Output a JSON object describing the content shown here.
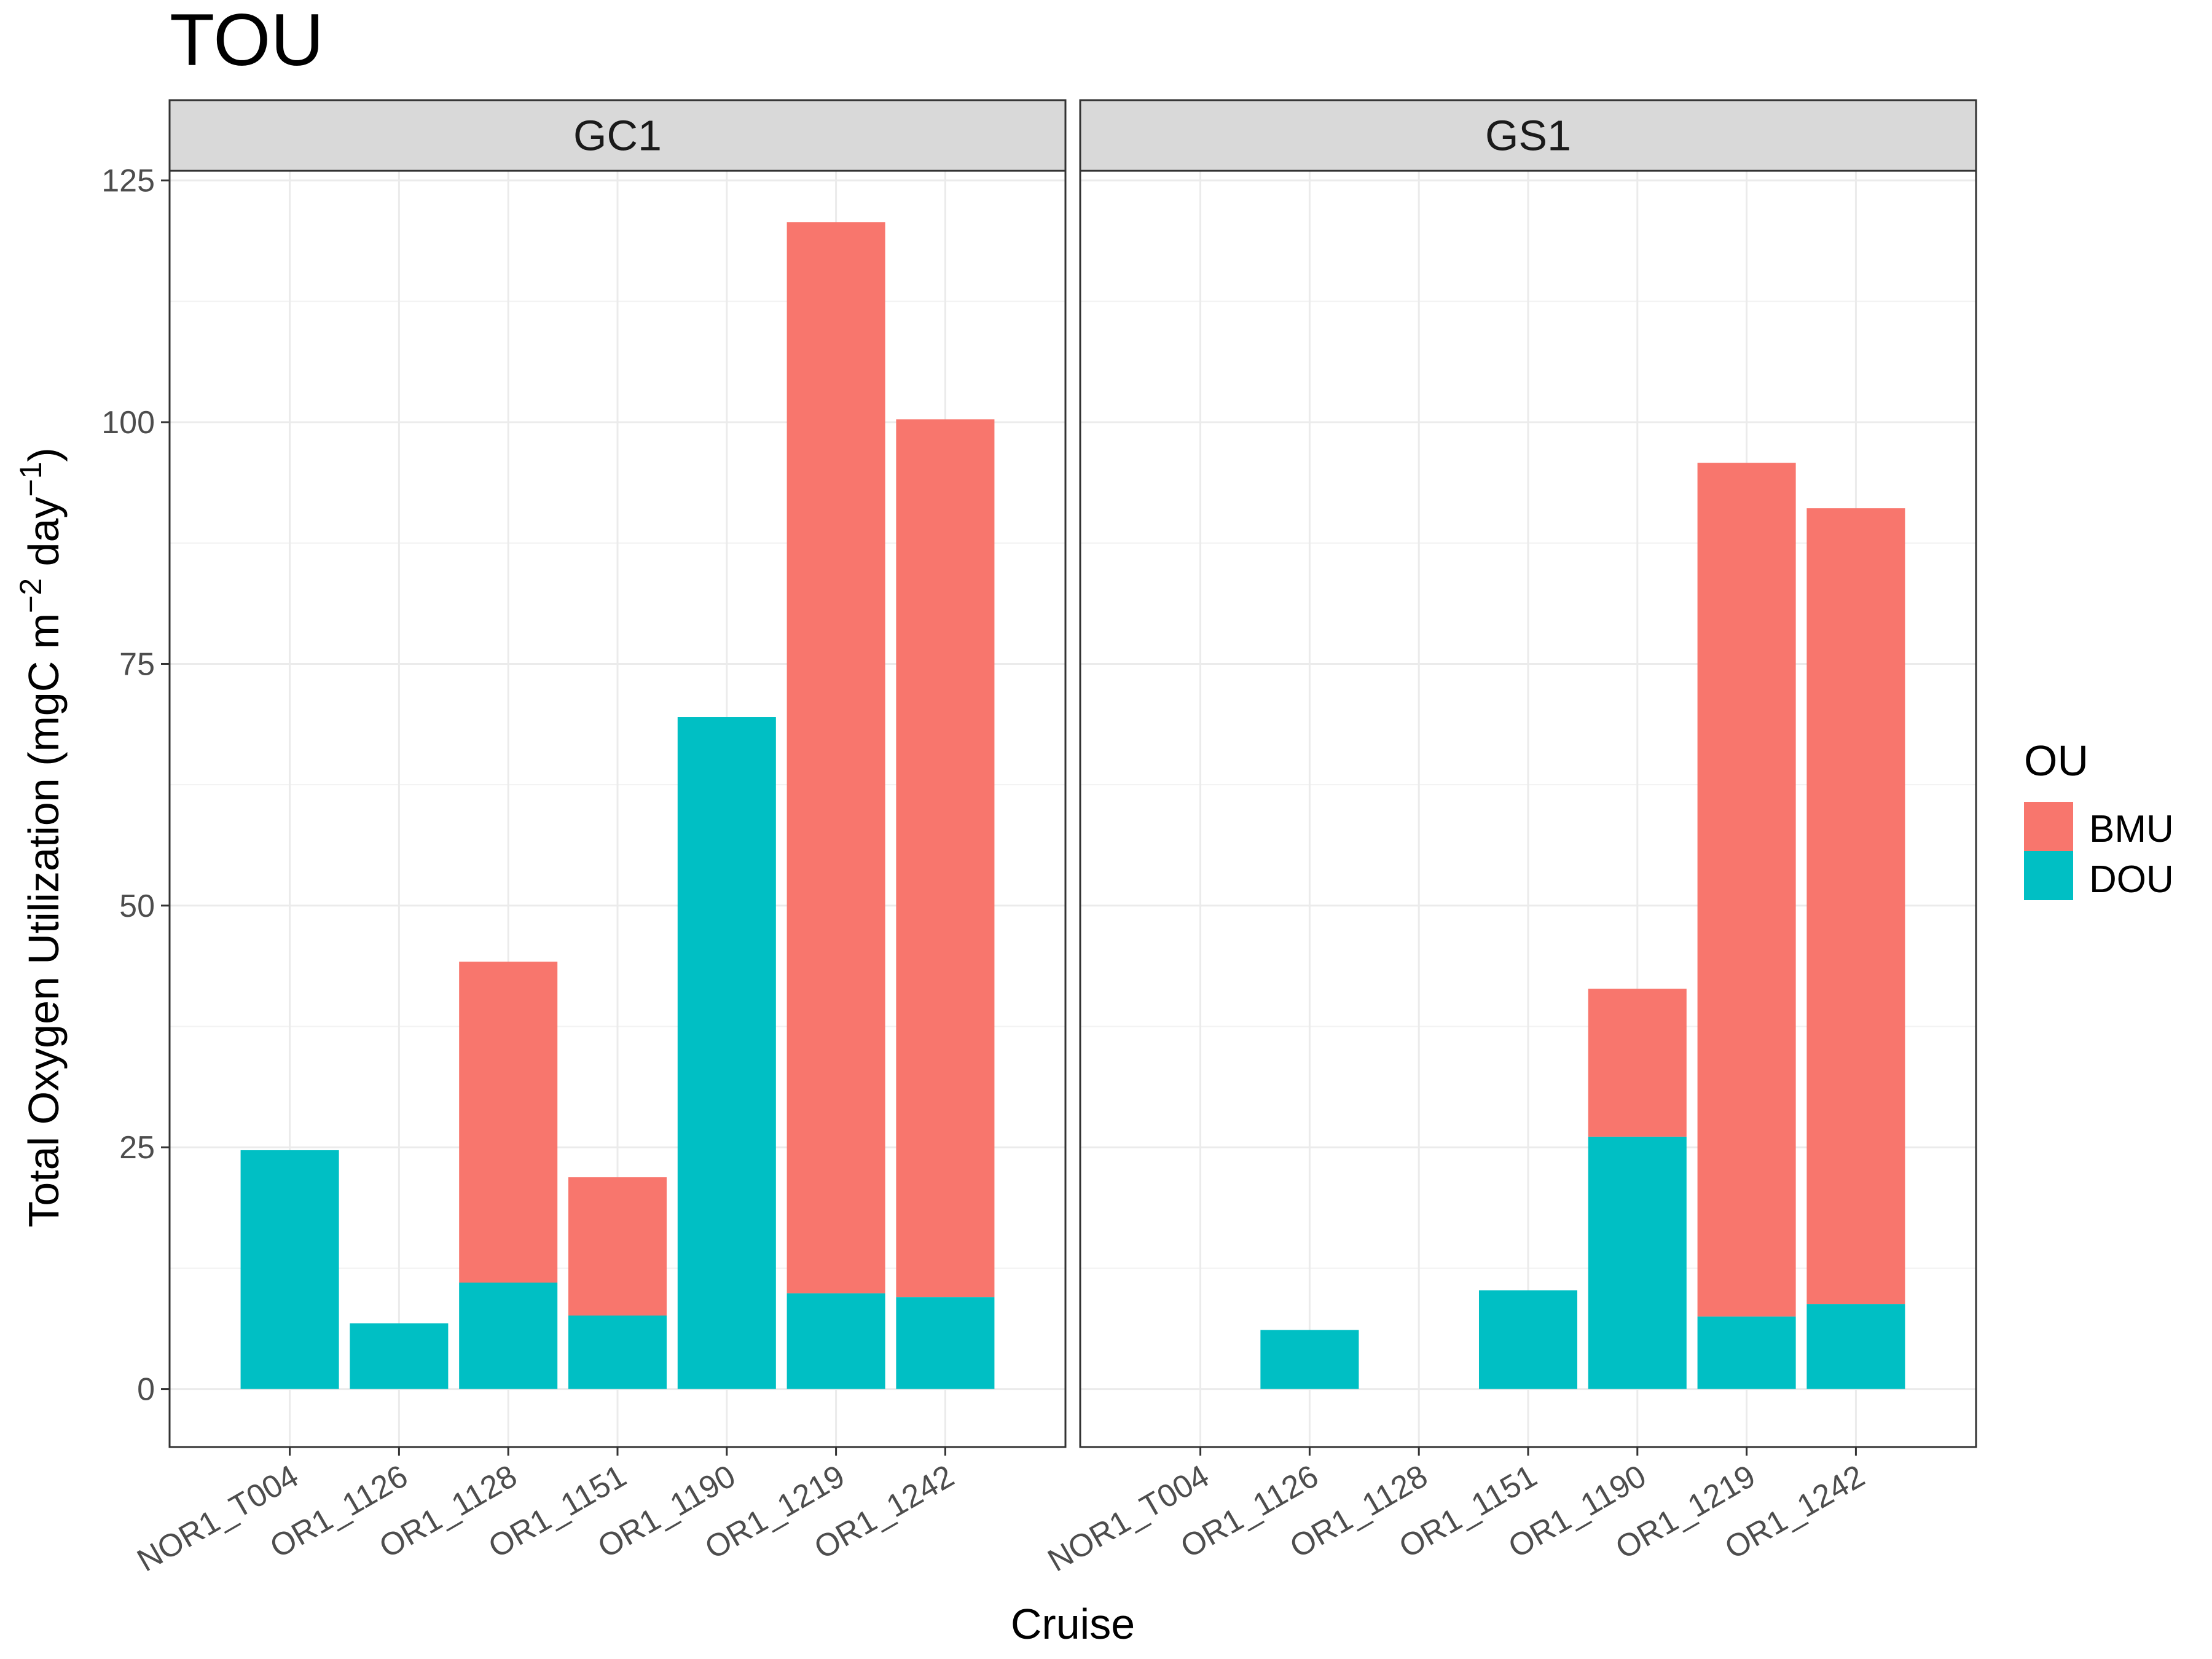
{
  "chart_data": {
    "type": "bar",
    "stacked": true,
    "title": "TOU",
    "xlabel": "Cruise",
    "ylabel": {
      "prefix": "Total Oxygen Utilization (mgC m",
      "sup1": "−2",
      "middle": " day",
      "sup2": "−1",
      "suffix": ")"
    },
    "ylim": [
      -6,
      126
    ],
    "yticks": [
      0,
      25,
      50,
      75,
      100,
      125
    ],
    "grid": true,
    "categories": [
      "NOR1_T004",
      "OR1_1126",
      "OR1_1128",
      "OR1_1151",
      "OR1_1190",
      "OR1_1219",
      "OR1_1242"
    ],
    "legend": {
      "title": "OU",
      "position": "right",
      "entries": [
        {
          "name": "BMU",
          "color": "#F8766D"
        },
        {
          "name": "DOU",
          "color": "#00BFC4"
        }
      ]
    },
    "panels": [
      {
        "name": "GC1",
        "series": [
          {
            "name": "DOU",
            "values": [
              24.7,
              6.8,
              11.0,
              7.6,
              69.5,
              9.9,
              9.5
            ]
          },
          {
            "name": "BMU",
            "values": [
              0,
              0,
              33.2,
              14.3,
              0,
              110.8,
              90.8
            ]
          }
        ]
      },
      {
        "name": "GS1",
        "series": [
          {
            "name": "DOU",
            "values": [
              0,
              6.1,
              0,
              10.2,
              26.1,
              7.5,
              8.8
            ]
          },
          {
            "name": "BMU",
            "values": [
              0,
              0,
              0,
              0,
              15.3,
              88.3,
              82.3
            ]
          }
        ]
      }
    ]
  }
}
